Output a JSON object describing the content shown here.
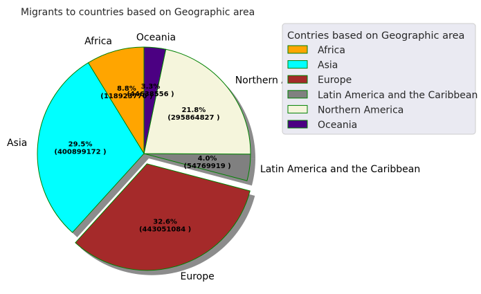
{
  "chart_data": {
    "type": "pie",
    "title": "Migrants to countries based on Geographic area",
    "legend_title": "Contries based on Geographic area",
    "legend_placement": "upper-right",
    "start_angle_deg": 90,
    "direction": "counterclockwise",
    "wedge_edge_color": "#008000",
    "shadow": true,
    "slices": [
      {
        "label": "Africa",
        "value": 118923770,
        "pct_text": "8.8%",
        "value_text": "(118923770 )",
        "color": "#FFA500",
        "explode": 0
      },
      {
        "label": "Asia",
        "value": 400899172,
        "pct_text": "29.5%",
        "value_text": "(400899172 )",
        "color": "#00FFFF",
        "explode": 0
      },
      {
        "label": "Europe",
        "value": 443051084,
        "pct_text": "32.6%",
        "value_text": "(443051084 )",
        "color": "#A52A2A",
        "explode": 0.1
      },
      {
        "label": "Latin America and the Caribbean",
        "value": 54769919,
        "pct_text": "4.0%",
        "value_text": "(54769919 )",
        "color": "#808080",
        "explode": 0
      },
      {
        "label": "Northern America",
        "value": 295864827,
        "pct_text": "21.8%",
        "value_text": "(295864827 )",
        "color": "#F5F5DC",
        "explode": 0
      },
      {
        "label": "Oceania",
        "value": 44638556,
        "pct_text": "3.3%",
        "value_text": "(44638556 )",
        "color": "#4B0082",
        "explode": 0
      }
    ]
  }
}
